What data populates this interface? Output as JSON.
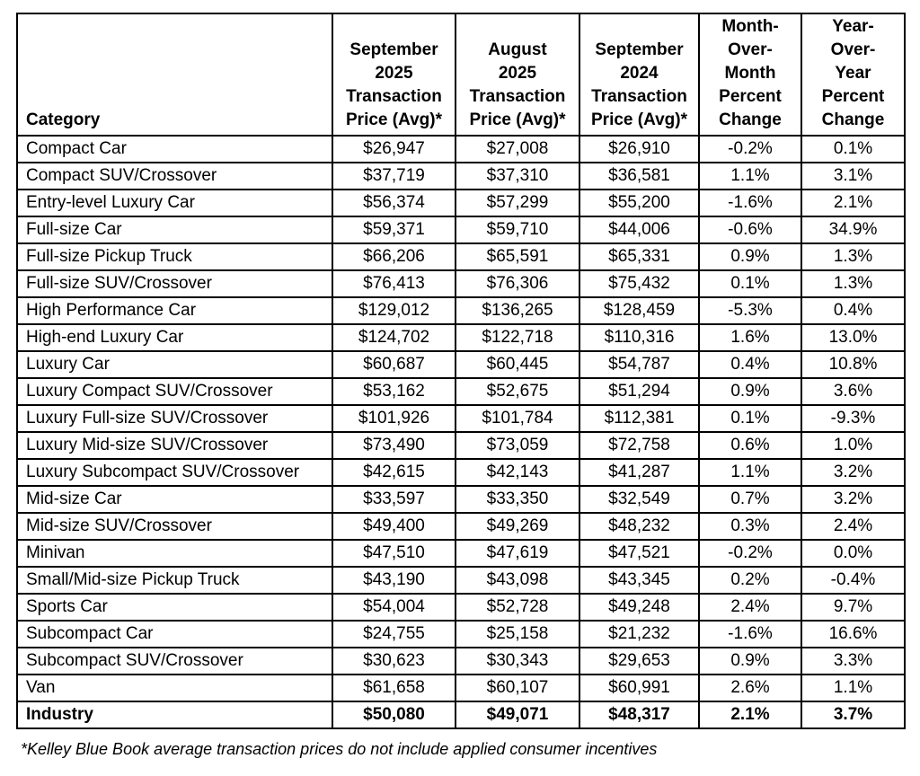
{
  "table": {
    "columns": [
      {
        "key": "category",
        "label": "Category"
      },
      {
        "key": "sep2025",
        "label": "September\n2025\nTransaction\nPrice (Avg)*"
      },
      {
        "key": "aug2025",
        "label": "August\n2025\nTransaction\nPrice (Avg)*"
      },
      {
        "key": "sep2024",
        "label": "September\n2024\nTransaction\nPrice (Avg)*"
      },
      {
        "key": "mom",
        "label": "Month-\nOver-\nMonth\nPercent\nChange"
      },
      {
        "key": "yoy",
        "label": "Year-\nOver-\nYear\nPercent\nChange"
      }
    ],
    "rows": [
      {
        "category": "Compact Car",
        "sep2025": "$26,947",
        "aug2025": "$27,008",
        "sep2024": "$26,910",
        "mom": "-0.2%",
        "yoy": "0.1%",
        "is_summary": false
      },
      {
        "category": "Compact SUV/Crossover",
        "sep2025": "$37,719",
        "aug2025": "$37,310",
        "sep2024": "$36,581",
        "mom": "1.1%",
        "yoy": "3.1%",
        "is_summary": false
      },
      {
        "category": "Entry-level Luxury Car",
        "sep2025": "$56,374",
        "aug2025": "$57,299",
        "sep2024": "$55,200",
        "mom": "-1.6%",
        "yoy": "2.1%",
        "is_summary": false
      },
      {
        "category": "Full-size Car",
        "sep2025": "$59,371",
        "aug2025": "$59,710",
        "sep2024": "$44,006",
        "mom": "-0.6%",
        "yoy": "34.9%",
        "is_summary": false
      },
      {
        "category": "Full-size Pickup Truck",
        "sep2025": "$66,206",
        "aug2025": "$65,591",
        "sep2024": "$65,331",
        "mom": "0.9%",
        "yoy": "1.3%",
        "is_summary": false
      },
      {
        "category": "Full-size SUV/Crossover",
        "sep2025": "$76,413",
        "aug2025": "$76,306",
        "sep2024": "$75,432",
        "mom": "0.1%",
        "yoy": "1.3%",
        "is_summary": false
      },
      {
        "category": "High Performance Car",
        "sep2025": "$129,012",
        "aug2025": "$136,265",
        "sep2024": "$128,459",
        "mom": "-5.3%",
        "yoy": "0.4%",
        "is_summary": false
      },
      {
        "category": "High-end Luxury Car",
        "sep2025": "$124,702",
        "aug2025": "$122,718",
        "sep2024": "$110,316",
        "mom": "1.6%",
        "yoy": "13.0%",
        "is_summary": false
      },
      {
        "category": "Luxury Car",
        "sep2025": "$60,687",
        "aug2025": "$60,445",
        "sep2024": "$54,787",
        "mom": "0.4%",
        "yoy": "10.8%",
        "is_summary": false
      },
      {
        "category": "Luxury Compact SUV/Crossover",
        "sep2025": "$53,162",
        "aug2025": "$52,675",
        "sep2024": "$51,294",
        "mom": "0.9%",
        "yoy": "3.6%",
        "is_summary": false
      },
      {
        "category": "Luxury Full-size SUV/Crossover",
        "sep2025": "$101,926",
        "aug2025": "$101,784",
        "sep2024": "$112,381",
        "mom": "0.1%",
        "yoy": "-9.3%",
        "is_summary": false
      },
      {
        "category": "Luxury Mid-size SUV/Crossover",
        "sep2025": "$73,490",
        "aug2025": "$73,059",
        "sep2024": "$72,758",
        "mom": "0.6%",
        "yoy": "1.0%",
        "is_summary": false
      },
      {
        "category": "Luxury Subcompact SUV/Crossover",
        "sep2025": "$42,615",
        "aug2025": "$42,143",
        "sep2024": "$41,287",
        "mom": "1.1%",
        "yoy": "3.2%",
        "is_summary": false
      },
      {
        "category": "Mid-size Car",
        "sep2025": "$33,597",
        "aug2025": "$33,350",
        "sep2024": "$32,549",
        "mom": "0.7%",
        "yoy": "3.2%",
        "is_summary": false
      },
      {
        "category": "Mid-size SUV/Crossover",
        "sep2025": "$49,400",
        "aug2025": "$49,269",
        "sep2024": "$48,232",
        "mom": "0.3%",
        "yoy": "2.4%",
        "is_summary": false
      },
      {
        "category": "Minivan",
        "sep2025": "$47,510",
        "aug2025": "$47,619",
        "sep2024": "$47,521",
        "mom": "-0.2%",
        "yoy": "0.0%",
        "is_summary": false
      },
      {
        "category": "Small/Mid-size Pickup Truck",
        "sep2025": "$43,190",
        "aug2025": "$43,098",
        "sep2024": "$43,345",
        "mom": "0.2%",
        "yoy": "-0.4%",
        "is_summary": false
      },
      {
        "category": "Sports Car",
        "sep2025": "$54,004",
        "aug2025": "$52,728",
        "sep2024": "$49,248",
        "mom": "2.4%",
        "yoy": "9.7%",
        "is_summary": false
      },
      {
        "category": "Subcompact Car",
        "sep2025": "$24,755",
        "aug2025": "$25,158",
        "sep2024": "$21,232",
        "mom": "-1.6%",
        "yoy": "16.6%",
        "is_summary": false
      },
      {
        "category": "Subcompact SUV/Crossover",
        "sep2025": "$30,623",
        "aug2025": "$30,343",
        "sep2024": "$29,653",
        "mom": "0.9%",
        "yoy": "3.3%",
        "is_summary": false
      },
      {
        "category": "Van",
        "sep2025": "$61,658",
        "aug2025": "$60,107",
        "sep2024": "$60,991",
        "mom": "2.6%",
        "yoy": "1.1%",
        "is_summary": false
      },
      {
        "category": "Industry",
        "sep2025": "$50,080",
        "aug2025": "$49,071",
        "sep2024": "$48,317",
        "mom": "2.1%",
        "yoy": "3.7%",
        "is_summary": true
      }
    ]
  },
  "footnote": "*Kelley Blue Book average transaction prices do not include applied consumer incentives"
}
